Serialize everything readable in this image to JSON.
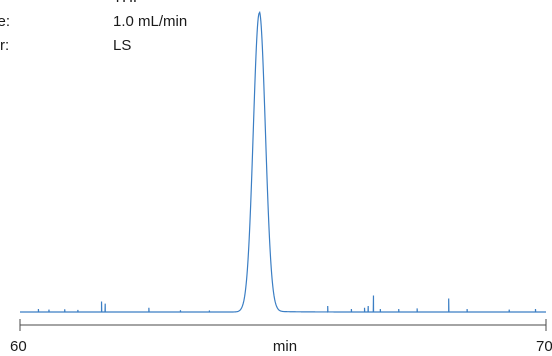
{
  "conditions": [
    {
      "key": "nt:",
      "value": "THF"
    },
    {
      "key": "rate:",
      "value": "1.0 mL/min"
    },
    {
      "key": "ctor:",
      "value": "LS"
    }
  ],
  "chart_data": {
    "type": "line",
    "title": "",
    "xlabel": "min",
    "ylabel": "",
    "xlim": [
      60,
      70
    ],
    "x_tick_labels": [
      "60",
      "70"
    ],
    "grid": false,
    "series": [
      {
        "color": "#3b7ec4",
        "peak": {
          "center": 64.55,
          "height": 1.0,
          "sigma": 0.115
        },
        "baseline": 0.0,
        "noise_spikes": [
          {
            "x": 61.55,
            "y": 0.035
          },
          {
            "x": 61.62,
            "y": 0.028
          },
          {
            "x": 60.35,
            "y": 0.01
          },
          {
            "x": 60.55,
            "y": 0.008
          },
          {
            "x": 60.85,
            "y": 0.009
          },
          {
            "x": 61.1,
            "y": 0.007
          },
          {
            "x": 62.45,
            "y": 0.014
          },
          {
            "x": 63.05,
            "y": 0.006
          },
          {
            "x": 63.6,
            "y": 0.005
          },
          {
            "x": 65.85,
            "y": 0.02
          },
          {
            "x": 66.3,
            "y": 0.01
          },
          {
            "x": 66.55,
            "y": 0.014
          },
          {
            "x": 66.62,
            "y": 0.02
          },
          {
            "x": 66.72,
            "y": 0.055
          },
          {
            "x": 66.85,
            "y": 0.01
          },
          {
            "x": 67.2,
            "y": 0.01
          },
          {
            "x": 67.55,
            "y": 0.012
          },
          {
            "x": 68.15,
            "y": 0.045
          },
          {
            "x": 68.5,
            "y": 0.01
          },
          {
            "x": 69.3,
            "y": 0.008
          },
          {
            "x": 69.8,
            "y": 0.01
          }
        ]
      }
    ]
  }
}
